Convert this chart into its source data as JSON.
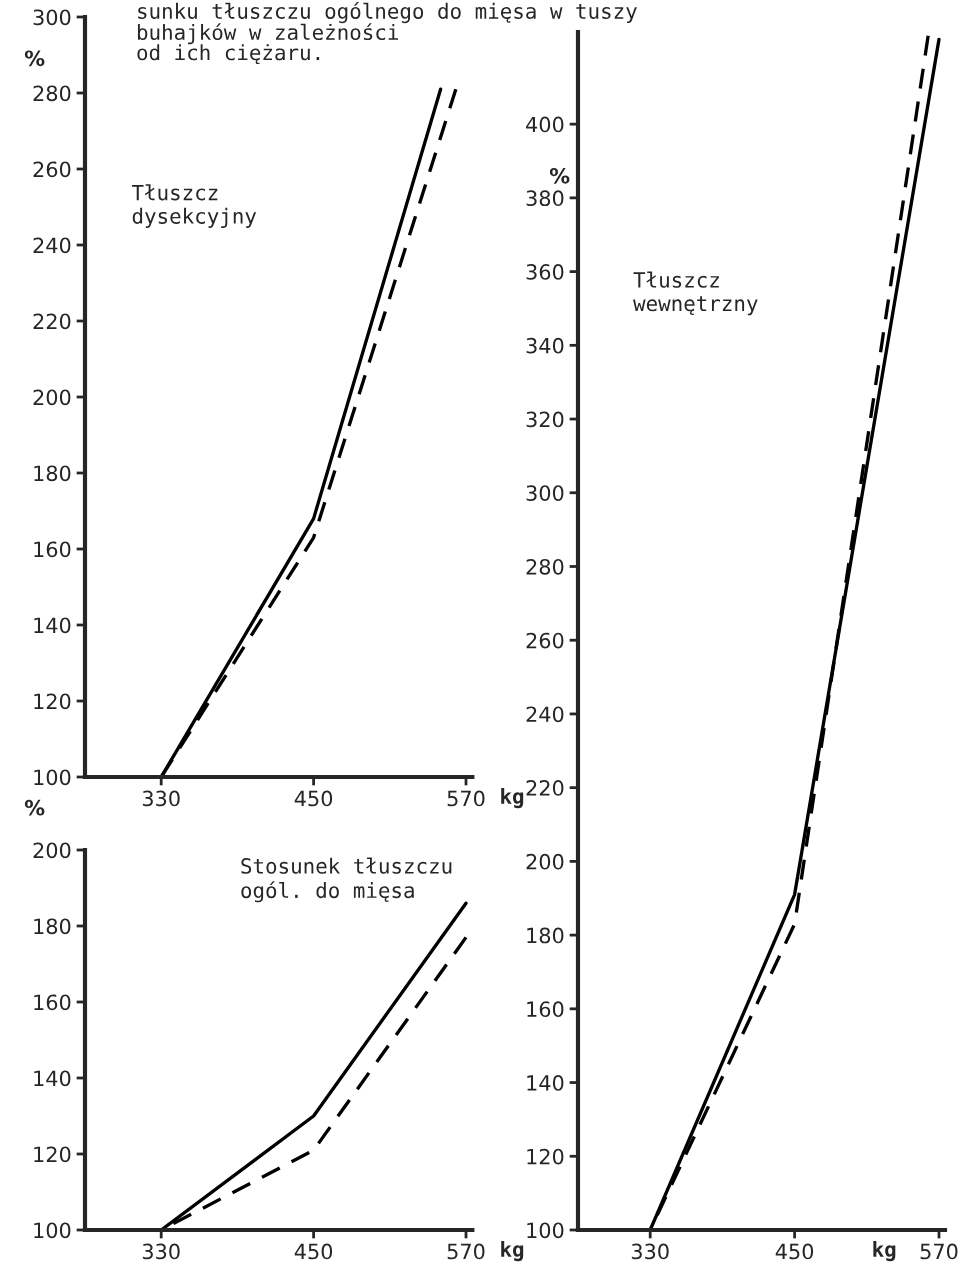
{
  "chart_data": [
    {
      "type": "line",
      "title": "sunku tłuszczu ogólnego do mięsa w tuszy\nbuhajków w zależności\nod ich ciężaru.",
      "subtitle": "Tłuszcz\ndysekcyjny",
      "ylabel": "%",
      "xlabel": "kg",
      "xlim": [
        270,
        575
      ],
      "xticks": [
        330,
        450,
        570
      ],
      "ylim": [
        100,
        300
      ],
      "yticks": [
        100,
        120,
        140,
        160,
        180,
        200,
        220,
        240,
        260,
        280,
        300
      ],
      "grid": false,
      "legend": false,
      "series": [
        {
          "color": "#000000",
          "line_style": "solid",
          "x": [
            330,
            450,
            550
          ],
          "values": [
            100,
            168,
            281
          ]
        },
        {
          "color": "#000000",
          "line_style": "dashed",
          "x": [
            330,
            450,
            562
          ],
          "values": [
            100,
            163,
            281
          ]
        }
      ]
    },
    {
      "type": "line",
      "subtitle": "Tłuszcz\nwewnętrzny",
      "ylabel": "%",
      "xlabel": "kg",
      "xlim": [
        270,
        575
      ],
      "xticks": [
        330,
        450,
        570
      ],
      "ylim": [
        100,
        425
      ],
      "yticks": [
        100,
        120,
        140,
        160,
        180,
        200,
        220,
        240,
        260,
        280,
        300,
        320,
        340,
        360,
        380,
        400
      ],
      "grid": false,
      "legend": false,
      "series": [
        {
          "color": "#000000",
          "line_style": "solid",
          "x": [
            330,
            450,
            570
          ],
          "values": [
            100,
            191,
            423
          ]
        },
        {
          "color": "#000000",
          "line_style": "dashed",
          "x": [
            330,
            450,
            561
          ],
          "values": [
            100,
            183,
            424
          ]
        }
      ]
    },
    {
      "type": "line",
      "subtitle": "Stosunek tłuszczu\nogól. do mięsa",
      "ylabel": "%",
      "xlabel": "kg",
      "xlim": [
        270,
        575
      ],
      "xticks": [
        330,
        450,
        570
      ],
      "ylim": [
        100,
        200
      ],
      "yticks": [
        100,
        120,
        140,
        160,
        180,
        200
      ],
      "grid": false,
      "legend": false,
      "series": [
        {
          "color": "#000000",
          "line_style": "solid",
          "x": [
            330,
            450,
            570
          ],
          "values": [
            100,
            130,
            186
          ]
        },
        {
          "color": "#000000",
          "line_style": "dashed",
          "x": [
            330,
            450,
            570
          ],
          "values": [
            100,
            121,
            177
          ]
        }
      ]
    }
  ]
}
